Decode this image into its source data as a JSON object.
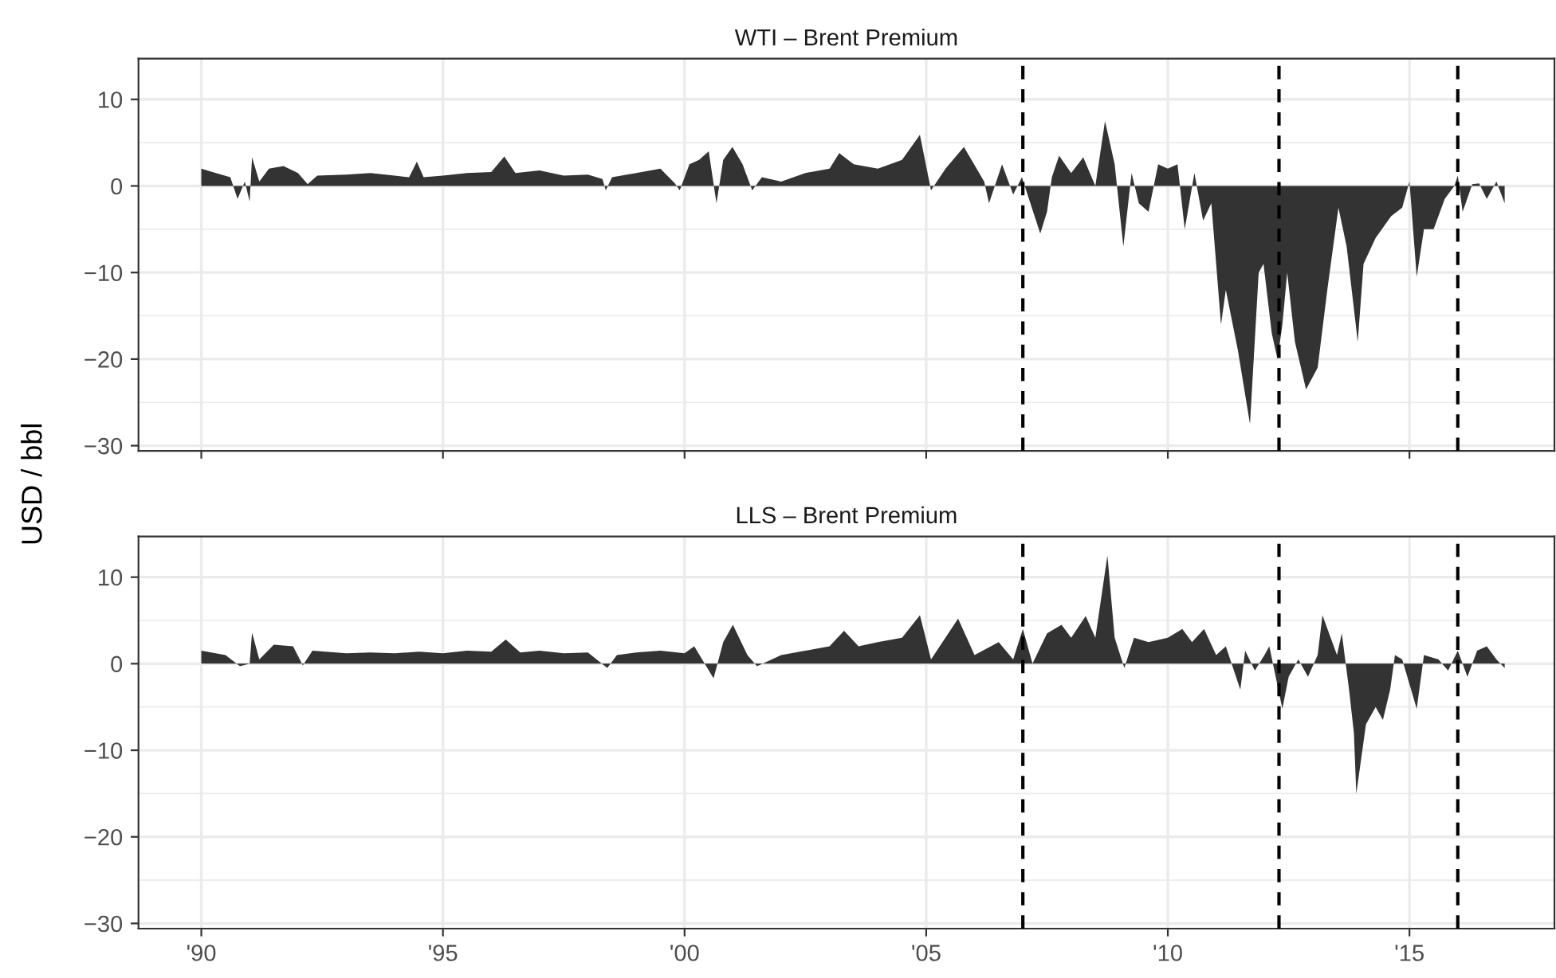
{
  "chart_data": [
    {
      "type": "area",
      "title": "WTI – Brent Premium",
      "ylabel": "USD / bbl",
      "tick_labels": "y",
      "grid": true,
      "legend": false,
      "xlim": [
        1988.7,
        2018.0
      ],
      "xticks": [
        {
          "value": 1990,
          "label": null
        },
        {
          "value": 1995,
          "label": null
        },
        {
          "value": 2000,
          "label": null
        },
        {
          "value": 2005,
          "label": null
        },
        {
          "value": 2010,
          "label": null
        },
        {
          "value": 2015,
          "label": null
        }
      ],
      "ylim": [
        -30.6,
        14.7
      ],
      "yticks": [
        {
          "value": -30,
          "label": "−30"
        },
        {
          "value": -20,
          "label": "−20"
        },
        {
          "value": -10,
          "label": "−10"
        },
        0,
        10
      ],
      "ref_lines": [
        {
          "axis": "x",
          "value": 2007.0,
          "color": "#000000",
          "line_style": "dashed"
        },
        {
          "axis": "x",
          "value": 2012.3,
          "color": "#000000",
          "line_style": "dashed"
        },
        {
          "axis": "x",
          "value": 2016.0,
          "color": "#000000",
          "line_style": "dashed"
        }
      ],
      "series": [
        {
          "color": "#333333",
          "x": [
            1990.0,
            1990.3,
            1990.6,
            1990.75,
            1990.9,
            1991.0,
            1991.05,
            1991.2,
            1991.4,
            1991.7,
            1992.0,
            1992.2,
            1992.4,
            1993.0,
            1993.5,
            1994.0,
            1994.3,
            1994.46,
            1994.6,
            1995.0,
            1995.5,
            1996.0,
            1996.27,
            1996.5,
            1997.0,
            1997.5,
            1998.0,
            1998.3,
            1998.37,
            1998.5,
            1999.0,
            1999.5,
            1999.8,
            1999.9,
            2000.1,
            2000.3,
            2000.5,
            2000.66,
            2000.8,
            2000.99,
            2001.2,
            2001.4,
            2001.6,
            2002.0,
            2002.5,
            2003.0,
            2003.2,
            2003.5,
            2004.0,
            2004.5,
            2004.87,
            2005.1,
            2005.4,
            2005.78,
            2006.2,
            2006.3,
            2006.57,
            2006.8,
            2006.98,
            2007.36,
            2007.5,
            2007.6,
            2007.75,
            2008.0,
            2008.25,
            2008.5,
            2008.7,
            2008.9,
            2009.08,
            2009.25,
            2009.4,
            2009.6,
            2009.8,
            2010.0,
            2010.2,
            2010.35,
            2010.55,
            2010.73,
            2010.9,
            2011.1,
            2011.2,
            2011.45,
            2011.7,
            2011.88,
            2011.98,
            2012.15,
            2012.27,
            2012.37,
            2012.47,
            2012.63,
            2012.86,
            2013.1,
            2013.3,
            2013.53,
            2013.7,
            2013.93,
            2014.05,
            2014.3,
            2014.62,
            2014.85,
            2015.0,
            2015.15,
            2015.3,
            2015.5,
            2015.73,
            2015.93,
            2016.0,
            2016.1,
            2016.3,
            2016.44,
            2016.6,
            2016.8,
            2016.97
          ],
          "values": [
            2.0,
            1.5,
            1.0,
            -1.5,
            0.5,
            -1.8,
            3.3,
            0.5,
            2.0,
            2.3,
            1.5,
            0.2,
            1.2,
            1.3,
            1.5,
            1.2,
            1.0,
            2.8,
            1.0,
            1.2,
            1.5,
            1.6,
            3.4,
            1.5,
            1.8,
            1.2,
            1.3,
            0.8,
            -0.5,
            1.0,
            1.5,
            2.0,
            0.3,
            -0.5,
            2.5,
            3.0,
            4.0,
            -2.0,
            3.0,
            4.5,
            2.5,
            -0.5,
            1.0,
            0.5,
            1.5,
            2.0,
            3.8,
            2.5,
            2.0,
            3.0,
            5.9,
            -0.5,
            2.0,
            4.5,
            0.5,
            -2.0,
            2.5,
            -1.0,
            1.0,
            -5.5,
            -3.0,
            1.0,
            3.5,
            1.5,
            3.3,
            0.0,
            7.5,
            2.5,
            -7.0,
            1.5,
            -2.0,
            -3.0,
            2.5,
            2.0,
            2.5,
            -5.0,
            1.5,
            -4.0,
            -2.0,
            -16.0,
            -12.0,
            -19.0,
            -27.5,
            -10.0,
            -9.0,
            -17.0,
            -20.0,
            -16.0,
            -10.0,
            -18.0,
            -23.5,
            -21.0,
            -12.0,
            -2.5,
            -7.0,
            -18.0,
            -9.0,
            -6.0,
            -3.5,
            -2.5,
            0.5,
            -10.5,
            -5.0,
            -5.0,
            -1.5,
            0.0,
            1.2,
            -3.0,
            0.2,
            0.3,
            -1.5,
            0.5,
            -2.0
          ]
        }
      ]
    },
    {
      "type": "area",
      "title": "LLS – Brent Premium",
      "grid": true,
      "legend": false,
      "xlim": [
        1988.7,
        2018.0
      ],
      "xticks": [
        {
          "value": 1990,
          "label": "'90"
        },
        {
          "value": 1995,
          "label": "'95"
        },
        {
          "value": 2000,
          "label": "'00"
        },
        {
          "value": 2005,
          "label": "'05"
        },
        {
          "value": 2010,
          "label": "'10"
        },
        {
          "value": 2015,
          "label": "'15"
        }
      ],
      "ylim": [
        -30.6,
        14.7
      ],
      "yticks": [
        {
          "value": -30,
          "label": "−30"
        },
        {
          "value": -20,
          "label": "−20"
        },
        {
          "value": -10,
          "label": "−10"
        },
        0,
        10
      ],
      "ref_lines": [
        {
          "axis": "x",
          "value": 2007.0,
          "color": "#000000",
          "line_style": "dashed"
        },
        {
          "axis": "x",
          "value": 2012.3,
          "color": "#000000",
          "line_style": "dashed"
        },
        {
          "axis": "x",
          "value": 2016.0,
          "color": "#000000",
          "line_style": "dashed"
        }
      ],
      "series": [
        {
          "color": "#333333",
          "x": [
            1990.0,
            1990.5,
            1990.8,
            1991.0,
            1991.05,
            1991.2,
            1991.5,
            1991.9,
            1992.1,
            1992.3,
            1993.0,
            1993.5,
            1994.0,
            1994.5,
            1995.0,
            1995.5,
            1996.0,
            1996.3,
            1996.6,
            1997.0,
            1997.5,
            1998.0,
            1998.4,
            1998.6,
            1999.0,
            1999.5,
            2000.0,
            2000.2,
            2000.6,
            2000.8,
            2001.0,
            2001.3,
            2001.5,
            2002.0,
            2002.5,
            2003.0,
            2003.3,
            2003.6,
            2004.0,
            2004.5,
            2004.87,
            2005.1,
            2005.66,
            2006.0,
            2006.5,
            2006.8,
            2007.0,
            2007.2,
            2007.5,
            2007.8,
            2008.0,
            2008.3,
            2008.5,
            2008.75,
            2008.9,
            2009.1,
            2009.3,
            2009.6,
            2010.0,
            2010.3,
            2010.5,
            2010.75,
            2011.0,
            2011.2,
            2011.5,
            2011.6,
            2011.8,
            2012.0,
            2012.1,
            2012.37,
            2012.5,
            2012.7,
            2012.9,
            2013.1,
            2013.2,
            2013.5,
            2013.6,
            2013.75,
            2013.85,
            2013.9,
            2014.1,
            2014.3,
            2014.45,
            2014.6,
            2014.7,
            2014.85,
            2015.15,
            2015.3,
            2015.6,
            2015.8,
            2016.0,
            2016.2,
            2016.4,
            2016.6,
            2016.8,
            2016.97
          ],
          "values": [
            1.5,
            1.0,
            -0.3,
            0.0,
            3.6,
            0.5,
            2.2,
            2.0,
            -0.2,
            1.5,
            1.2,
            1.3,
            1.2,
            1.4,
            1.2,
            1.5,
            1.4,
            2.8,
            1.3,
            1.5,
            1.2,
            1.3,
            -0.5,
            1.0,
            1.3,
            1.5,
            1.2,
            2.0,
            -1.7,
            2.5,
            4.5,
            1.0,
            -0.3,
            1.0,
            1.5,
            2.0,
            3.8,
            2.0,
            2.5,
            3.0,
            5.6,
            0.5,
            5.2,
            1.0,
            2.5,
            0.5,
            4.0,
            0.0,
            3.5,
            4.5,
            3.0,
            5.5,
            3.0,
            12.5,
            3.0,
            -0.5,
            3.0,
            2.5,
            3.0,
            4.0,
            2.5,
            4.0,
            1.0,
            2.0,
            -3.0,
            1.5,
            -0.8,
            1.0,
            2.0,
            -5.2,
            -1.5,
            0.5,
            -1.5,
            1.0,
            5.6,
            1.0,
            3.5,
            -3.0,
            -8.0,
            -15.0,
            -7.0,
            -5.0,
            -6.5,
            -3.0,
            1.0,
            0.5,
            -5.2,
            1.0,
            0.5,
            -0.8,
            1.5,
            -1.5,
            1.5,
            2.0,
            0.5,
            -0.5
          ]
        }
      ]
    }
  ]
}
